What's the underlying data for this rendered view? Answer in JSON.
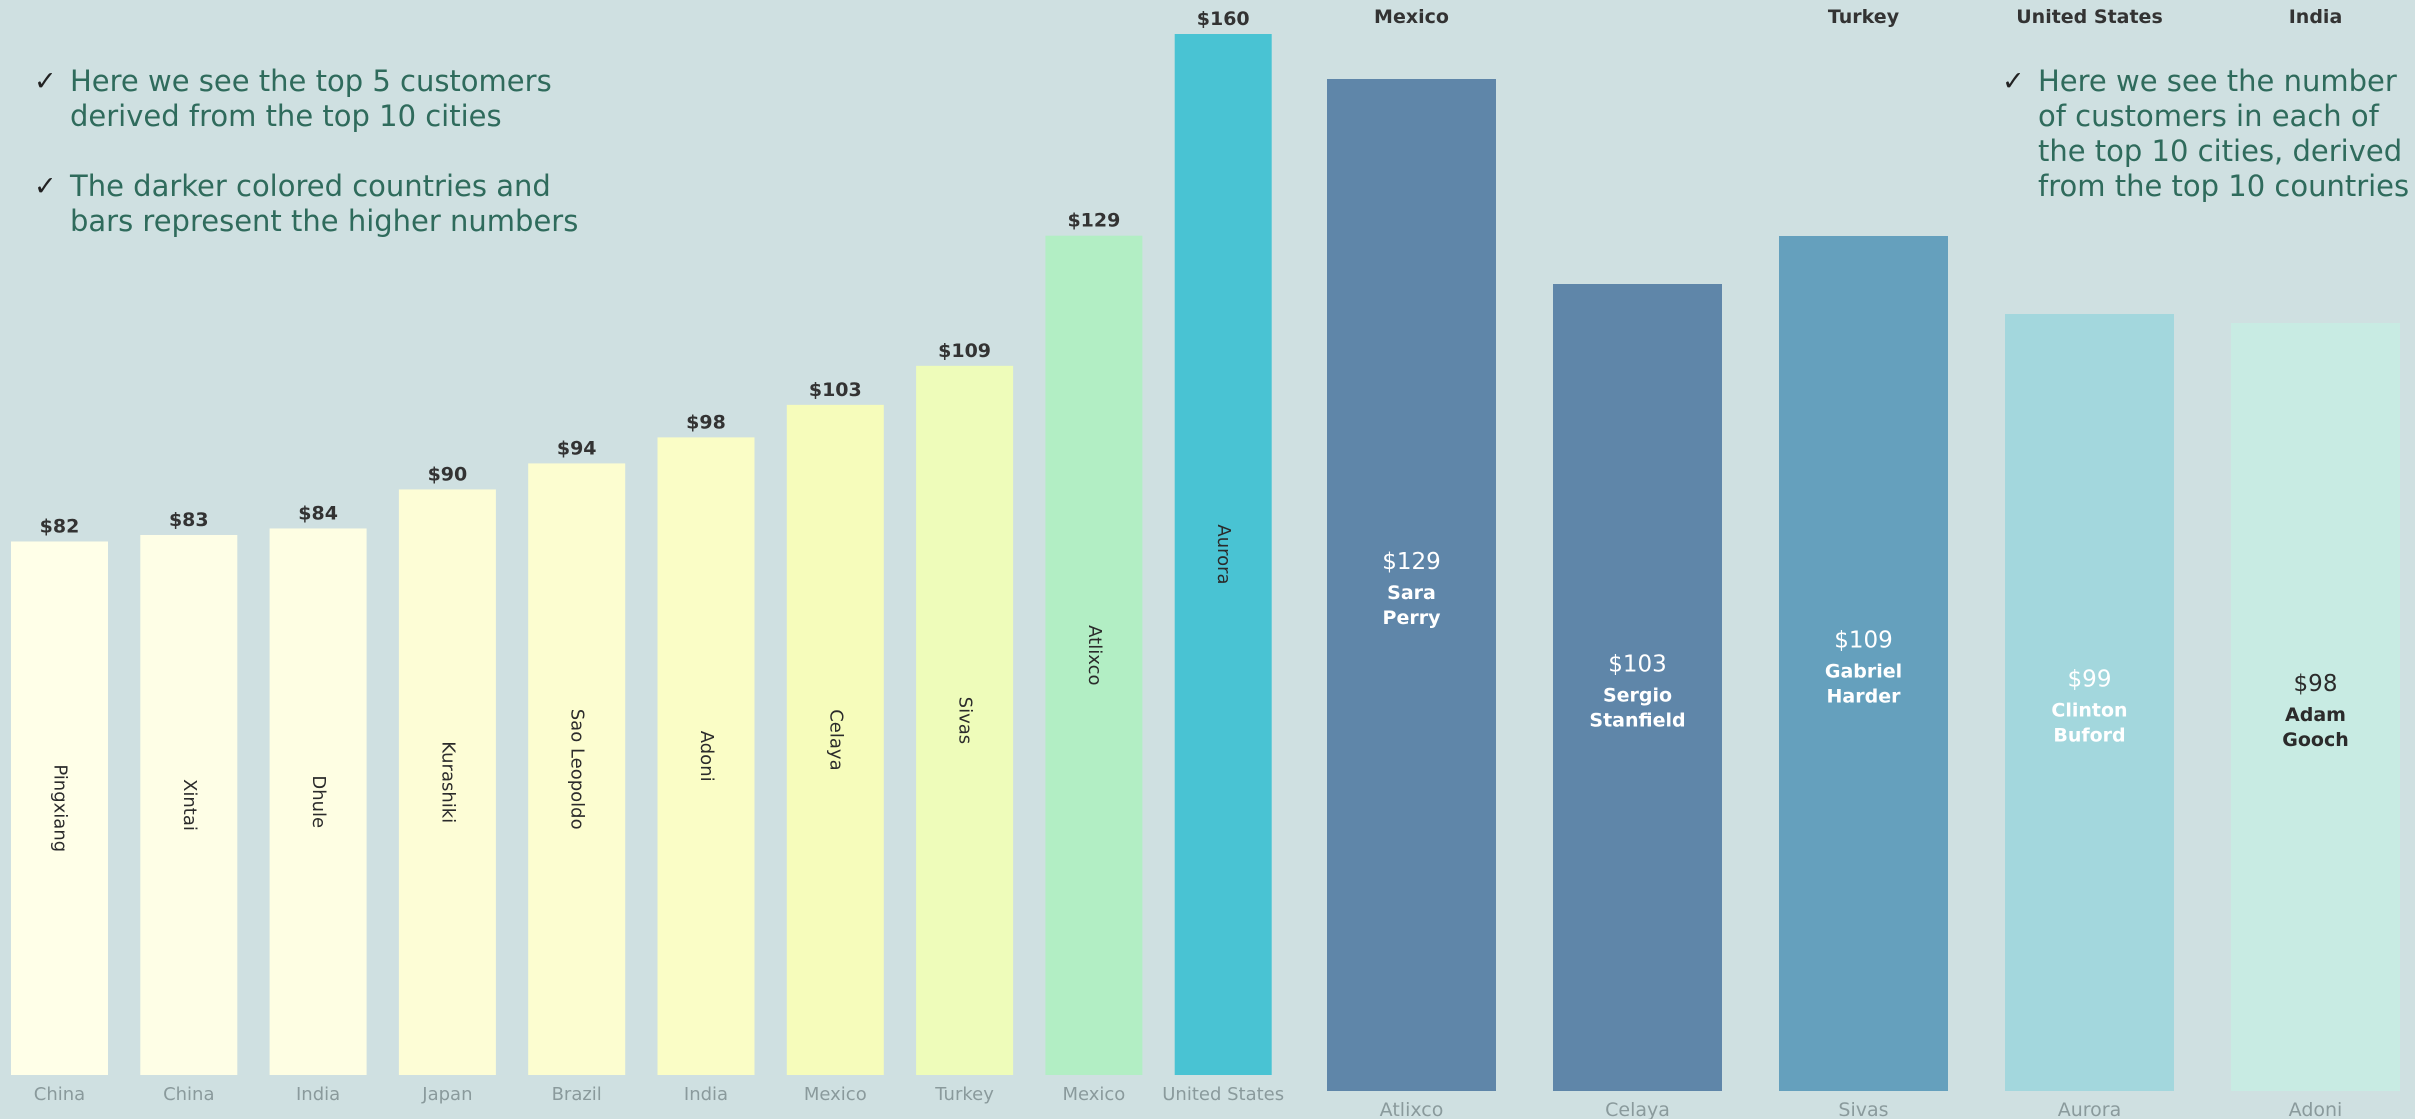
{
  "notes": {
    "left": [
      "Here we see the top 5 customers derived from the top 10 cities",
      "The darker colored countries and bars represent the higher numbers"
    ],
    "right": [
      "Here we see the number of customers in each of the top 10 cities, derived from the top 10 countries"
    ]
  },
  "check_glyph": "✓",
  "chart_data": [
    {
      "type": "bar",
      "categories": [
        "Pingxiang",
        "Xintai",
        "Dhule",
        "Kurashiki",
        "Sao Leopoldo",
        "Adoni",
        "Celaya",
        "Sivas",
        "Atlixco",
        "Aurora"
      ],
      "countries": [
        "China",
        "China",
        "India",
        "Japan",
        "Brazil",
        "India",
        "Mexico",
        "Turkey",
        "Mexico",
        "United States"
      ],
      "values": [
        82,
        83,
        84,
        90,
        94,
        98,
        103,
        109,
        129,
        160
      ],
      "value_labels": [
        "$82",
        "$83",
        "$84",
        "$90",
        "$94",
        "$98",
        "$103",
        "$109",
        "$129",
        "$160"
      ],
      "colors": [
        "#ffffe8",
        "#fefee6",
        "#fefee3",
        "#fdfdd6",
        "#fcfdd0",
        "#fafdc6",
        "#f6fcbb",
        "#eefcba",
        "#b2eec4",
        "#49c3d3"
      ],
      "ylim": [
        0,
        160
      ]
    },
    {
      "type": "bar",
      "categories": [
        "Atlixco",
        "Celaya",
        "Sivas",
        "Aurora",
        "Adoni"
      ],
      "countries": [
        "Mexico",
        "",
        "Turkey",
        "United States",
        "India"
      ],
      "values": [
        129,
        103,
        109,
        99,
        98
      ],
      "value_labels": [
        "$129",
        "$103",
        "$109",
        "$99",
        "$98"
      ],
      "customers": [
        [
          "Sara",
          "Perry"
        ],
        [
          "Sergio",
          "Stanfield"
        ],
        [
          "Gabriel",
          "Harder"
        ],
        [
          "Clinton",
          "Buford"
        ],
        [
          "Adam",
          "Gooch"
        ]
      ],
      "colors": [
        "#5f86a9",
        "#5f86a9",
        "#65a0bd",
        "#a3d7dd",
        "#c8ebe3"
      ],
      "label_colors": [
        "#ffffff",
        "#ffffff",
        "#ffffff",
        "#ffffff",
        "#2b2b2b"
      ]
    }
  ]
}
